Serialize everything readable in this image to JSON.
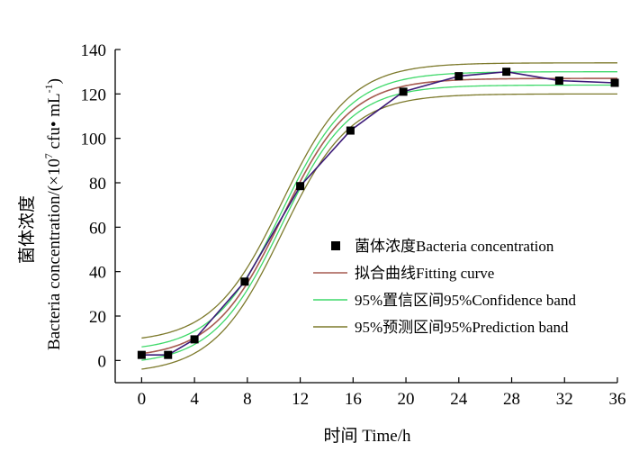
{
  "chart_data": {
    "type": "line",
    "title": "",
    "xlabel": "时间  Time/h",
    "ylabel_cn": "菌体浓度",
    "ylabel_en_main": "Bacteria concentration/(×10",
    "ylabel_en_exp": "7",
    "ylabel_en_unit": " cfu• mL",
    "ylabel_en_unit_exp": "-1",
    "ylabel_en_close": ")",
    "xlim": [
      -2,
      36
    ],
    "ylim": [
      -10,
      140
    ],
    "xticks": [
      0,
      4,
      8,
      12,
      16,
      20,
      24,
      28,
      32,
      36
    ],
    "yticks": [
      0,
      20,
      40,
      60,
      80,
      100,
      120,
      140
    ],
    "grid": false,
    "legend_position": "center-right",
    "series": [
      {
        "name": "菌体浓度Bacteria concentration",
        "kind": "scatter",
        "color": "#000000",
        "x": [
          0,
          2,
          4,
          7.8,
          12,
          15.8,
          19.8,
          24,
          27.6,
          31.6,
          35.8
        ],
        "y": [
          2.5,
          2.5,
          9.5,
          35.5,
          78.5,
          103.5,
          121,
          128,
          130,
          126,
          125
        ]
      },
      {
        "name": "拟合曲线Fitting curve",
        "kind": "line",
        "color": "#a65a50",
        "model": {
          "A1": 1,
          "A2": 127,
          "x0": 10.6,
          "dx": 2.6
        }
      },
      {
        "name": "95%置信区间95%Confidence band",
        "kind": "band",
        "color": "#3fd96a",
        "model": {
          "A1": 1,
          "A2": 127,
          "x0": 10.6,
          "dx": 2.6,
          "half_width": 3
        }
      },
      {
        "name": "95%预测区间95%Prediction band",
        "kind": "band",
        "color": "#7d7a2c",
        "model": {
          "A1": 1,
          "A2": 127,
          "x0": 10.6,
          "dx": 2.6,
          "half_width": 7
        }
      }
    ],
    "connecting_line_color": "#3c1a78"
  }
}
